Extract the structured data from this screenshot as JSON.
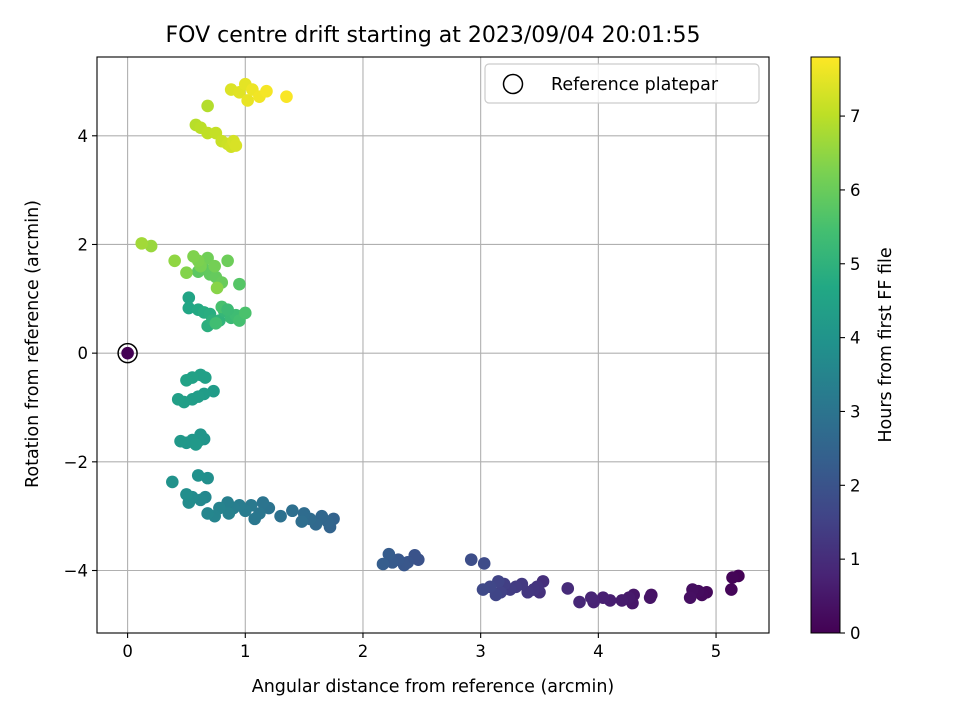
{
  "chart_data": {
    "type": "scatter",
    "title": "FOV centre drift starting at 2023/09/04 20:01:55",
    "xlabel": "Angular distance from reference (arcmin)",
    "ylabel": "Rotation from reference (arcmin)",
    "xlim": [
      -0.26,
      5.45
    ],
    "ylim": [
      -5.15,
      5.45
    ],
    "xticks": [
      0,
      1,
      2,
      3,
      4,
      5
    ],
    "yticks": [
      -4,
      -2,
      0,
      2,
      4
    ],
    "xtick_labels": [
      "0",
      "1",
      "2",
      "3",
      "4",
      "5"
    ],
    "ytick_labels": [
      "−4",
      "−2",
      "0",
      "2",
      "4"
    ],
    "grid": true,
    "legend": {
      "placement": "top-right",
      "entries": [
        "Reference platepar"
      ]
    },
    "colorbar": {
      "label": "Hours from first FF file",
      "range": [
        0,
        7.8
      ],
      "ticks": [
        0,
        1,
        2,
        3,
        4,
        5,
        6,
        7
      ],
      "tick_labels": [
        "0",
        "1",
        "2",
        "3",
        "4",
        "5",
        "6",
        "7"
      ],
      "colormap": "viridis"
    },
    "reference_point": {
      "x": 0,
      "y": 0,
      "name": "Reference platepar"
    },
    "points": [
      {
        "x": 0.0,
        "y": 0.0,
        "h": 0.0
      },
      {
        "x": 5.19,
        "y": -4.1,
        "h": 0.05
      },
      {
        "x": 5.14,
        "y": -4.13,
        "h": 0.08
      },
      {
        "x": 5.13,
        "y": -4.35,
        "h": 0.12
      },
      {
        "x": 4.92,
        "y": -4.4,
        "h": 0.17
      },
      {
        "x": 4.88,
        "y": -4.45,
        "h": 0.2
      },
      {
        "x": 4.85,
        "y": -4.38,
        "h": 0.24
      },
      {
        "x": 4.8,
        "y": -4.35,
        "h": 0.28
      },
      {
        "x": 4.78,
        "y": -4.5,
        "h": 0.32
      },
      {
        "x": 4.45,
        "y": -4.45,
        "h": 0.38
      },
      {
        "x": 4.44,
        "y": -4.5,
        "h": 0.42
      },
      {
        "x": 4.3,
        "y": -4.45,
        "h": 0.46
      },
      {
        "x": 4.29,
        "y": -4.6,
        "h": 0.5
      },
      {
        "x": 4.26,
        "y": -4.5,
        "h": 0.55
      },
      {
        "x": 4.2,
        "y": -4.55,
        "h": 0.6
      },
      {
        "x": 4.1,
        "y": -4.55,
        "h": 0.65
      },
      {
        "x": 4.04,
        "y": -4.5,
        "h": 0.7
      },
      {
        "x": 3.96,
        "y": -4.58,
        "h": 0.75
      },
      {
        "x": 3.94,
        "y": -4.5,
        "h": 0.8
      },
      {
        "x": 3.84,
        "y": -4.58,
        "h": 0.85
      },
      {
        "x": 3.74,
        "y": -4.33,
        "h": 0.95
      },
      {
        "x": 3.53,
        "y": -4.2,
        "h": 1.05
      },
      {
        "x": 3.5,
        "y": -4.4,
        "h": 1.1
      },
      {
        "x": 3.48,
        "y": -4.3,
        "h": 1.15
      },
      {
        "x": 3.45,
        "y": -4.35,
        "h": 1.2
      },
      {
        "x": 3.4,
        "y": -4.4,
        "h": 1.25
      },
      {
        "x": 3.35,
        "y": -4.25,
        "h": 1.3
      },
      {
        "x": 3.3,
        "y": -4.3,
        "h": 1.35
      },
      {
        "x": 3.25,
        "y": -4.35,
        "h": 1.4
      },
      {
        "x": 3.2,
        "y": -4.25,
        "h": 1.45
      },
      {
        "x": 3.17,
        "y": -4.4,
        "h": 1.5
      },
      {
        "x": 3.15,
        "y": -4.2,
        "h": 1.55
      },
      {
        "x": 3.13,
        "y": -4.45,
        "h": 1.6
      },
      {
        "x": 3.08,
        "y": -4.3,
        "h": 1.65
      },
      {
        "x": 3.02,
        "y": -4.35,
        "h": 1.7
      },
      {
        "x": 3.03,
        "y": -3.87,
        "h": 1.78
      },
      {
        "x": 2.92,
        "y": -3.8,
        "h": 1.85
      },
      {
        "x": 2.47,
        "y": -3.8,
        "h": 1.95
      },
      {
        "x": 2.44,
        "y": -3.72,
        "h": 2.0
      },
      {
        "x": 2.38,
        "y": -3.85,
        "h": 2.05
      },
      {
        "x": 2.35,
        "y": -3.9,
        "h": 2.1
      },
      {
        "x": 2.3,
        "y": -3.8,
        "h": 2.15
      },
      {
        "x": 2.25,
        "y": -3.85,
        "h": 2.2
      },
      {
        "x": 2.22,
        "y": -3.7,
        "h": 2.25
      },
      {
        "x": 2.17,
        "y": -3.88,
        "h": 2.3
      },
      {
        "x": 1.75,
        "y": -3.05,
        "h": 2.45
      },
      {
        "x": 1.72,
        "y": -3.2,
        "h": 2.5
      },
      {
        "x": 1.7,
        "y": -3.1,
        "h": 2.55
      },
      {
        "x": 1.65,
        "y": -3.0,
        "h": 2.6
      },
      {
        "x": 1.6,
        "y": -3.15,
        "h": 2.65
      },
      {
        "x": 1.55,
        "y": -3.05,
        "h": 2.7
      },
      {
        "x": 1.5,
        "y": -2.95,
        "h": 2.75
      },
      {
        "x": 1.48,
        "y": -3.1,
        "h": 2.8
      },
      {
        "x": 1.4,
        "y": -2.9,
        "h": 2.85
      },
      {
        "x": 1.3,
        "y": -3.0,
        "h": 2.9
      },
      {
        "x": 1.2,
        "y": -2.85,
        "h": 2.95
      },
      {
        "x": 1.15,
        "y": -2.75,
        "h": 3.0
      },
      {
        "x": 1.12,
        "y": -2.95,
        "h": 3.05
      },
      {
        "x": 1.08,
        "y": -3.05,
        "h": 3.1
      },
      {
        "x": 1.05,
        "y": -2.8,
        "h": 3.15
      },
      {
        "x": 1.0,
        "y": -2.9,
        "h": 3.2
      },
      {
        "x": 0.95,
        "y": -2.8,
        "h": 3.25
      },
      {
        "x": 0.9,
        "y": -2.85,
        "h": 3.3
      },
      {
        "x": 0.85,
        "y": -2.75,
        "h": 3.35
      },
      {
        "x": 0.86,
        "y": -2.95,
        "h": 3.4
      },
      {
        "x": 0.78,
        "y": -2.85,
        "h": 3.45
      },
      {
        "x": 0.74,
        "y": -3.0,
        "h": 3.5
      },
      {
        "x": 0.68,
        "y": -2.95,
        "h": 3.55
      },
      {
        "x": 0.66,
        "y": -2.65,
        "h": 3.6
      },
      {
        "x": 0.62,
        "y": -2.7,
        "h": 3.65
      },
      {
        "x": 0.55,
        "y": -2.65,
        "h": 3.7
      },
      {
        "x": 0.52,
        "y": -2.75,
        "h": 3.75
      },
      {
        "x": 0.5,
        "y": -2.6,
        "h": 3.8
      },
      {
        "x": 0.68,
        "y": -2.3,
        "h": 3.85
      },
      {
        "x": 0.6,
        "y": -2.25,
        "h": 3.9
      },
      {
        "x": 0.38,
        "y": -2.37,
        "h": 3.95
      },
      {
        "x": 0.65,
        "y": -1.58,
        "h": 4.0
      },
      {
        "x": 0.62,
        "y": -1.5,
        "h": 4.05
      },
      {
        "x": 0.6,
        "y": -1.62,
        "h": 4.08
      },
      {
        "x": 0.55,
        "y": -1.6,
        "h": 4.1
      },
      {
        "x": 0.5,
        "y": -1.65,
        "h": 4.12
      },
      {
        "x": 0.45,
        "y": -1.62,
        "h": 4.15
      },
      {
        "x": 0.58,
        "y": -1.68,
        "h": 4.18
      },
      {
        "x": 0.73,
        "y": -0.7,
        "h": 4.25
      },
      {
        "x": 0.65,
        "y": -0.75,
        "h": 4.28
      },
      {
        "x": 0.6,
        "y": -0.8,
        "h": 4.3
      },
      {
        "x": 0.55,
        "y": -0.85,
        "h": 4.32
      },
      {
        "x": 0.48,
        "y": -0.9,
        "h": 4.35
      },
      {
        "x": 0.43,
        "y": -0.85,
        "h": 4.38
      },
      {
        "x": 0.66,
        "y": -0.45,
        "h": 4.4
      },
      {
        "x": 0.62,
        "y": -0.4,
        "h": 4.42
      },
      {
        "x": 0.55,
        "y": -0.45,
        "h": 4.45
      },
      {
        "x": 0.5,
        "y": -0.5,
        "h": 4.48
      },
      {
        "x": 0.52,
        "y": 1.02,
        "h": 4.55
      },
      {
        "x": 0.52,
        "y": 0.83,
        "h": 4.6
      },
      {
        "x": 0.6,
        "y": 0.8,
        "h": 4.7
      },
      {
        "x": 0.65,
        "y": 0.75,
        "h": 4.8
      },
      {
        "x": 0.7,
        "y": 0.72,
        "h": 4.85
      },
      {
        "x": 0.68,
        "y": 0.5,
        "h": 4.9
      },
      {
        "x": 0.72,
        "y": 0.6,
        "h": 4.95
      },
      {
        "x": 0.78,
        "y": 0.6,
        "h": 5.05
      },
      {
        "x": 0.82,
        "y": 0.78,
        "h": 5.15
      },
      {
        "x": 0.88,
        "y": 0.65,
        "h": 5.25
      },
      {
        "x": 0.92,
        "y": 0.7,
        "h": 5.35
      },
      {
        "x": 0.95,
        "y": 0.6,
        "h": 5.45
      },
      {
        "x": 1.0,
        "y": 0.74,
        "h": 5.55
      },
      {
        "x": 0.8,
        "y": 0.85,
        "h": 5.5
      },
      {
        "x": 0.75,
        "y": 0.55,
        "h": 5.4
      },
      {
        "x": 0.85,
        "y": 0.8,
        "h": 5.3
      },
      {
        "x": 0.95,
        "y": 1.27,
        "h": 5.7
      },
      {
        "x": 0.6,
        "y": 1.5,
        "h": 5.8
      },
      {
        "x": 0.65,
        "y": 1.55,
        "h": 5.85
      },
      {
        "x": 0.7,
        "y": 1.45,
        "h": 5.9
      },
      {
        "x": 0.75,
        "y": 1.4,
        "h": 5.95
      },
      {
        "x": 0.8,
        "y": 1.3,
        "h": 6.0
      },
      {
        "x": 0.85,
        "y": 1.7,
        "h": 6.05
      },
      {
        "x": 0.68,
        "y": 1.75,
        "h": 6.1
      },
      {
        "x": 0.74,
        "y": 1.6,
        "h": 6.15
      },
      {
        "x": 0.62,
        "y": 1.6,
        "h": 6.2
      },
      {
        "x": 0.6,
        "y": 1.7,
        "h": 6.25
      },
      {
        "x": 0.56,
        "y": 1.78,
        "h": 6.3
      },
      {
        "x": 0.5,
        "y": 1.48,
        "h": 6.35
      },
      {
        "x": 0.76,
        "y": 1.2,
        "h": 6.4
      },
      {
        "x": 0.4,
        "y": 1.7,
        "h": 6.5
      },
      {
        "x": 0.2,
        "y": 1.97,
        "h": 6.6
      },
      {
        "x": 0.12,
        "y": 2.02,
        "h": 6.7
      },
      {
        "x": 0.68,
        "y": 4.55,
        "h": 6.9
      },
      {
        "x": 0.58,
        "y": 4.2,
        "h": 6.95
      },
      {
        "x": 0.62,
        "y": 4.15,
        "h": 7.0
      },
      {
        "x": 0.68,
        "y": 4.05,
        "h": 7.05
      },
      {
        "x": 0.75,
        "y": 4.05,
        "h": 7.1
      },
      {
        "x": 0.8,
        "y": 3.9,
        "h": 7.15
      },
      {
        "x": 0.85,
        "y": 3.85,
        "h": 7.2
      },
      {
        "x": 0.88,
        "y": 3.8,
        "h": 7.25
      },
      {
        "x": 0.9,
        "y": 3.9,
        "h": 7.3
      },
      {
        "x": 0.92,
        "y": 3.82,
        "h": 7.35
      },
      {
        "x": 0.88,
        "y": 4.85,
        "h": 7.4
      },
      {
        "x": 0.95,
        "y": 4.8,
        "h": 7.45
      },
      {
        "x": 1.0,
        "y": 4.95,
        "h": 7.5
      },
      {
        "x": 1.02,
        "y": 4.65,
        "h": 7.55
      },
      {
        "x": 1.06,
        "y": 4.85,
        "h": 7.6
      },
      {
        "x": 1.12,
        "y": 4.72,
        "h": 7.65
      },
      {
        "x": 1.18,
        "y": 4.82,
        "h": 7.7
      },
      {
        "x": 1.35,
        "y": 4.72,
        "h": 7.75
      }
    ]
  }
}
